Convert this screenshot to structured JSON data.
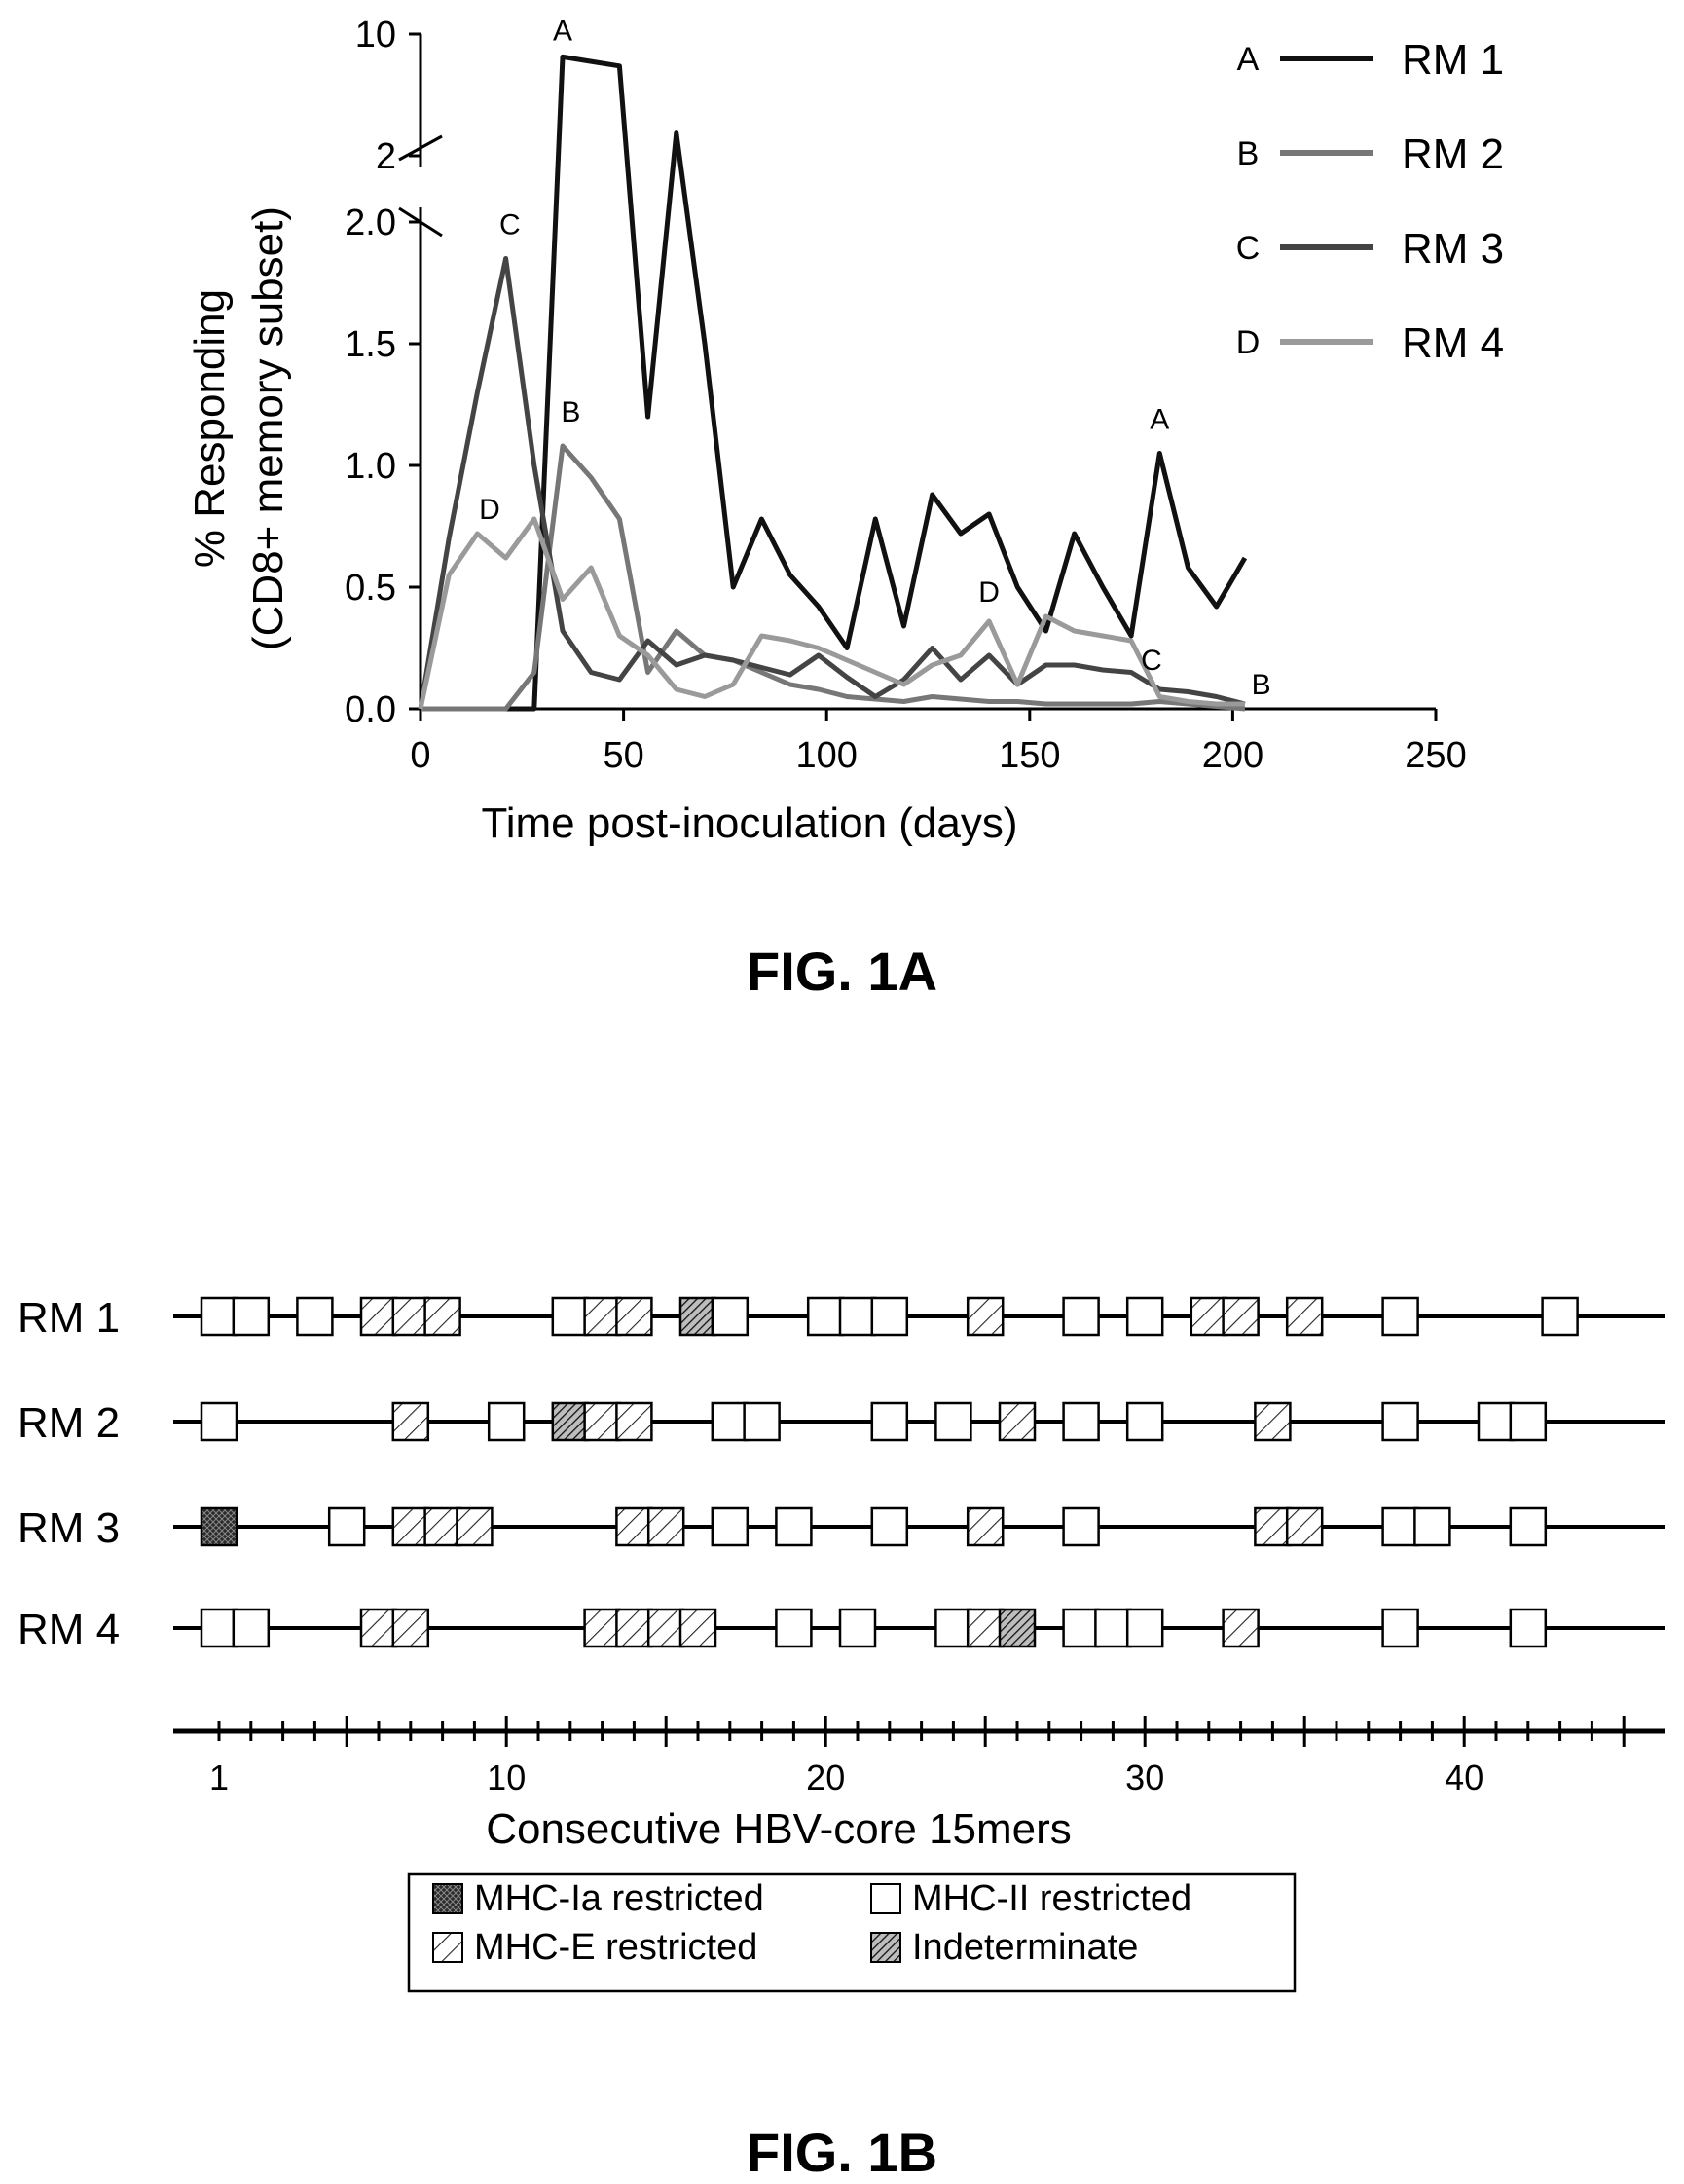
{
  "chart_data": [
    {
      "type": "line",
      "caption": "FIG. 1A",
      "xlabel": "Time post-inoculation (days)",
      "ylabel_lines": [
        "% Responding",
        "(CD8+ memory subset)"
      ],
      "xlim": [
        0,
        250
      ],
      "xticks": [
        "0",
        "50",
        "100",
        "150",
        "200",
        "250"
      ],
      "ylim": [
        0,
        10
      ],
      "yaxis_break": true,
      "yticks_lower": [
        "0.0",
        "0.5",
        "1.0",
        "1.5",
        "2.0"
      ],
      "yticks_upper": [
        "2",
        "10"
      ],
      "legend_position": "top-right",
      "series": [
        {
          "name": "RM 1",
          "letter": "A",
          "color": "#111111",
          "x": [
            0,
            7,
            14,
            21,
            28,
            35,
            42,
            49,
            56,
            63,
            70,
            77,
            84,
            91,
            98,
            105,
            112,
            119,
            126,
            133,
            140,
            147,
            154,
            161,
            168,
            175,
            182,
            189,
            196,
            203
          ],
          "y": [
            0,
            0,
            0,
            0,
            0,
            8.5,
            8.2,
            7.9,
            1.2,
            3.5,
            1.5,
            0.5,
            0.78,
            0.55,
            0.42,
            0.25,
            0.78,
            0.34,
            0.88,
            0.72,
            0.8,
            0.5,
            0.32,
            0.72,
            0.5,
            0.3,
            1.05,
            0.58,
            0.42,
            0.62
          ]
        },
        {
          "name": "RM 2",
          "letter": "B",
          "color": "#777777",
          "x": [
            0,
            7,
            14,
            21,
            28,
            35,
            42,
            49,
            56,
            63,
            70,
            77,
            84,
            91,
            98,
            105,
            112,
            119,
            126,
            133,
            140,
            147,
            154,
            161,
            168,
            175,
            182,
            189,
            196,
            203
          ],
          "y": [
            0,
            0,
            0,
            0,
            0.15,
            1.08,
            0.95,
            0.78,
            0.15,
            0.32,
            0.22,
            0.2,
            0.15,
            0.1,
            0.08,
            0.05,
            0.04,
            0.03,
            0.05,
            0.04,
            0.03,
            0.03,
            0.02,
            0.02,
            0.02,
            0.02,
            0.03,
            0.02,
            0.01,
            0
          ]
        },
        {
          "name": "RM 3",
          "letter": "C",
          "color": "#444444",
          "x": [
            0,
            7,
            14,
            21,
            28,
            35,
            42,
            49,
            56,
            63,
            70,
            77,
            84,
            91,
            98,
            105,
            112,
            119,
            126,
            133,
            140,
            147,
            154,
            161,
            168,
            175,
            182,
            189,
            196,
            203
          ],
          "y": [
            0,
            0.7,
            1.3,
            1.85,
            1.0,
            0.32,
            0.15,
            0.12,
            0.28,
            0.18,
            0.22,
            0.2,
            0.17,
            0.14,
            0.22,
            0.13,
            0.05,
            0.12,
            0.25,
            0.12,
            0.22,
            0.1,
            0.18,
            0.18,
            0.16,
            0.15,
            0.08,
            0.07,
            0.05,
            0.02
          ]
        },
        {
          "name": "RM 4",
          "letter": "D",
          "color": "#9a9a9a",
          "x": [
            0,
            7,
            14,
            21,
            28,
            35,
            42,
            49,
            56,
            63,
            70,
            77,
            84,
            91,
            98,
            105,
            112,
            119,
            126,
            133,
            140,
            147,
            154,
            161,
            168,
            175,
            182,
            189,
            196,
            203
          ],
          "y": [
            0,
            0.55,
            0.72,
            0.62,
            0.78,
            0.45,
            0.58,
            0.3,
            0.22,
            0.08,
            0.05,
            0.1,
            0.3,
            0.28,
            0.25,
            0.2,
            0.15,
            0.1,
            0.18,
            0.22,
            0.36,
            0.1,
            0.38,
            0.32,
            0.3,
            0.28,
            0.05,
            0.03,
            0.02,
            0.02
          ]
        }
      ],
      "annotations": [
        {
          "text": "A",
          "x": 35,
          "y": 9.6
        },
        {
          "text": "A",
          "x": 182,
          "y": 1.15
        },
        {
          "text": "B",
          "x": 37,
          "y": 1.18
        },
        {
          "text": "B",
          "x": 207,
          "y": 0.06
        },
        {
          "text": "C",
          "x": 22,
          "y": 1.95
        },
        {
          "text": "C",
          "x": 180,
          "y": 0.16
        },
        {
          "text": "D",
          "x": 17,
          "y": 0.78
        },
        {
          "text": "D",
          "x": 140,
          "y": 0.44
        }
      ]
    },
    {
      "type": "epitope-map",
      "caption": "FIG. 1B",
      "xlabel": "Consecutive HBV-core 15mers",
      "xlim": [
        1,
        45
      ],
      "xticks": [
        "1",
        "10",
        "20",
        "30",
        "40"
      ],
      "categories": {
        "ia": {
          "label": "MHC-Ia restricted",
          "pattern": "crosshatch-dark"
        },
        "ii": {
          "label": "MHC-II restricted",
          "pattern": "open"
        },
        "e": {
          "label": "MHC-E restricted",
          "pattern": "diagonal-lines"
        },
        "ind": {
          "label": "Indeterminate",
          "pattern": "dense-hatch"
        }
      },
      "legend_order": [
        "ia",
        "ii",
        "e",
        "ind"
      ],
      "rows": [
        {
          "name": "RM 1",
          "epitopes": [
            {
              "pos": 1,
              "type": "ii"
            },
            {
              "pos": 2,
              "type": "ii"
            },
            {
              "pos": 4,
              "type": "ii"
            },
            {
              "pos": 6,
              "type": "e"
            },
            {
              "pos": 7,
              "type": "e"
            },
            {
              "pos": 8,
              "type": "e"
            },
            {
              "pos": 12,
              "type": "ii"
            },
            {
              "pos": 13,
              "type": "e"
            },
            {
              "pos": 14,
              "type": "e"
            },
            {
              "pos": 16,
              "type": "ind"
            },
            {
              "pos": 17,
              "type": "ii"
            },
            {
              "pos": 20,
              "type": "ii"
            },
            {
              "pos": 21,
              "type": "ii"
            },
            {
              "pos": 22,
              "type": "ii"
            },
            {
              "pos": 25,
              "type": "e"
            },
            {
              "pos": 28,
              "type": "ii"
            },
            {
              "pos": 30,
              "type": "ii"
            },
            {
              "pos": 32,
              "type": "e"
            },
            {
              "pos": 33,
              "type": "e"
            },
            {
              "pos": 35,
              "type": "e"
            },
            {
              "pos": 38,
              "type": "ii"
            },
            {
              "pos": 43,
              "type": "ii"
            }
          ]
        },
        {
          "name": "RM 2",
          "epitopes": [
            {
              "pos": 1,
              "type": "ii"
            },
            {
              "pos": 7,
              "type": "e"
            },
            {
              "pos": 10,
              "type": "ii"
            },
            {
              "pos": 12,
              "type": "ind"
            },
            {
              "pos": 13,
              "type": "e"
            },
            {
              "pos": 14,
              "type": "e"
            },
            {
              "pos": 17,
              "type": "ii"
            },
            {
              "pos": 18,
              "type": "ii"
            },
            {
              "pos": 22,
              "type": "ii"
            },
            {
              "pos": 24,
              "type": "ii"
            },
            {
              "pos": 26,
              "type": "e"
            },
            {
              "pos": 28,
              "type": "ii"
            },
            {
              "pos": 30,
              "type": "ii"
            },
            {
              "pos": 34,
              "type": "e"
            },
            {
              "pos": 38,
              "type": "ii"
            },
            {
              "pos": 41,
              "type": "ii"
            },
            {
              "pos": 42,
              "type": "ii"
            }
          ]
        },
        {
          "name": "RM 3",
          "epitopes": [
            {
              "pos": 1,
              "type": "ia"
            },
            {
              "pos": 5,
              "type": "ii"
            },
            {
              "pos": 7,
              "type": "e"
            },
            {
              "pos": 8,
              "type": "e"
            },
            {
              "pos": 9,
              "type": "e"
            },
            {
              "pos": 14,
              "type": "e"
            },
            {
              "pos": 15,
              "type": "e"
            },
            {
              "pos": 17,
              "type": "ii"
            },
            {
              "pos": 19,
              "type": "ii"
            },
            {
              "pos": 22,
              "type": "ii"
            },
            {
              "pos": 25,
              "type": "e"
            },
            {
              "pos": 28,
              "type": "ii"
            },
            {
              "pos": 34,
              "type": "e"
            },
            {
              "pos": 35,
              "type": "e"
            },
            {
              "pos": 38,
              "type": "ii"
            },
            {
              "pos": 39,
              "type": "ii"
            },
            {
              "pos": 42,
              "type": "ii"
            }
          ]
        },
        {
          "name": "RM 4",
          "epitopes": [
            {
              "pos": 1,
              "type": "ii"
            },
            {
              "pos": 2,
              "type": "ii"
            },
            {
              "pos": 6,
              "type": "e"
            },
            {
              "pos": 7,
              "type": "e"
            },
            {
              "pos": 13,
              "type": "e"
            },
            {
              "pos": 14,
              "type": "e"
            },
            {
              "pos": 15,
              "type": "e"
            },
            {
              "pos": 16,
              "type": "e"
            },
            {
              "pos": 19,
              "type": "ii"
            },
            {
              "pos": 21,
              "type": "ii"
            },
            {
              "pos": 24,
              "type": "ii"
            },
            {
              "pos": 25,
              "type": "e"
            },
            {
              "pos": 26,
              "type": "ind"
            },
            {
              "pos": 28,
              "type": "ii"
            },
            {
              "pos": 29,
              "type": "ii"
            },
            {
              "pos": 30,
              "type": "ii"
            },
            {
              "pos": 33,
              "type": "e"
            },
            {
              "pos": 38,
              "type": "ii"
            },
            {
              "pos": 42,
              "type": "ii"
            }
          ]
        }
      ]
    }
  ]
}
